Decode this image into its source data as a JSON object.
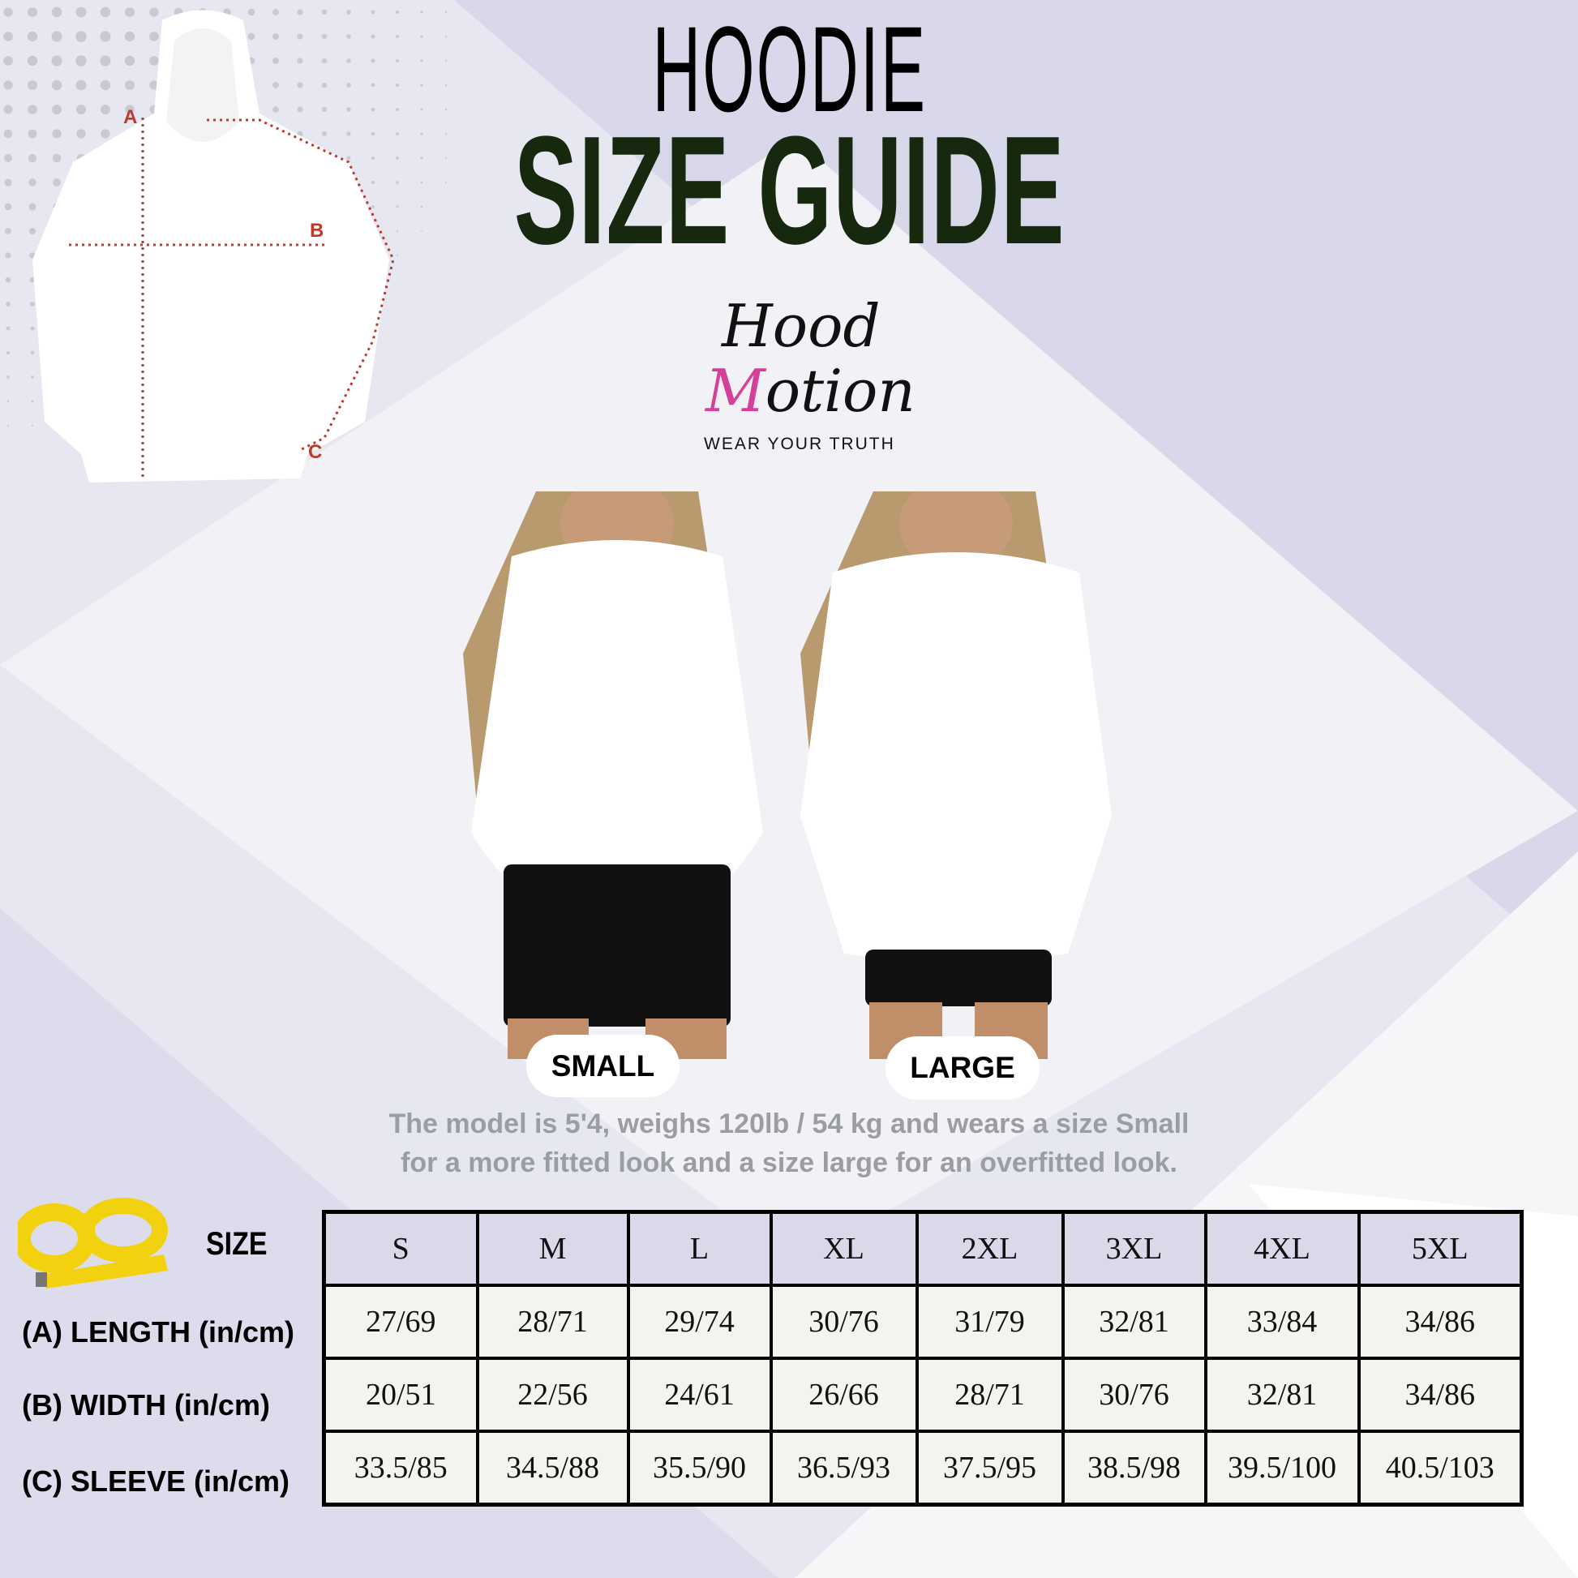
{
  "header": {
    "title_line1": "HOODIE",
    "title_line2": "SIZE GUIDE",
    "title_color": "#16290f"
  },
  "logo": {
    "word1": "Hood",
    "word2_first": "M",
    "word2_rest": "otion",
    "tagline": "WEAR YOUR TRUTH",
    "accent_color": "#d4409a"
  },
  "diagram": {
    "markers": [
      "A",
      "B",
      "C"
    ],
    "marker_color": "#c0392b"
  },
  "models": {
    "small_label": "SMALL",
    "large_label": "LARGE",
    "caption_line1": "The model is 5'4, weighs 120lb / 54 kg and wears a size Small",
    "caption_line2": "for a more fitted look and a size large for an overfitted look."
  },
  "table": {
    "size_label": "SIZE",
    "icon": "tape-measure-icon",
    "sizes": [
      "S",
      "M",
      "L",
      "XL",
      "2XL",
      "3XL",
      "4XL",
      "5XL"
    ],
    "rows": [
      {
        "label": "(A) LENGTH (in/cm)",
        "values": [
          "27/69",
          "28/71",
          "29/74",
          "30/76",
          "31/79",
          "32/81",
          "33/84",
          "34/86"
        ]
      },
      {
        "label": "(B) WIDTH (in/cm)",
        "values": [
          "20/51",
          "22/56",
          "24/61",
          "26/66",
          "28/71",
          "30/76",
          "32/81",
          "34/86"
        ]
      },
      {
        "label": "(C) SLEEVE (in/cm)",
        "values": [
          "33.5/85",
          "34.5/88",
          "35.5/90",
          "36.5/93",
          "37.5/95",
          "38.5/98",
          "39.5/100",
          "40.5/103"
        ]
      }
    ]
  }
}
